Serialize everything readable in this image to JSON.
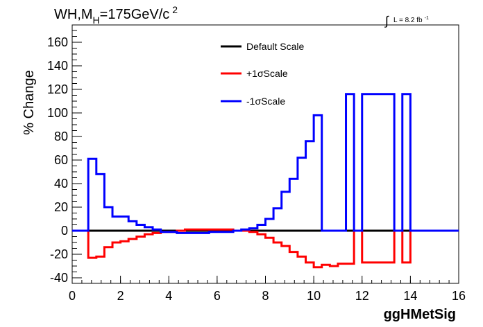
{
  "chart_data": {
    "type": "line",
    "title": "WH,M",
    "title_sub": "H",
    "title_mid": "=175GeV/c",
    "title_sup": "2",
    "lumi_prefix": "L = 8.2 fb",
    "lumi_sup": "-1",
    "xlabel": "ggHMetSig",
    "ylabel": "% Change",
    "xlim": [
      0,
      16
    ],
    "ylim": [
      -45,
      175
    ],
    "xticks": [
      "0",
      "2",
      "4",
      "6",
      "8",
      "10",
      "12",
      "14",
      "16"
    ],
    "yticks": [
      "-40",
      "-20",
      "0",
      "20",
      "40",
      "60",
      "80",
      "100",
      "120",
      "140",
      "160"
    ],
    "legend_position": "top-center",
    "bin_edges": [
      0,
      0.667,
      1.0,
      1.333,
      1.667,
      2.0,
      2.333,
      2.667,
      3.0,
      3.333,
      3.667,
      4.0,
      4.333,
      4.667,
      5.0,
      5.333,
      5.667,
      6.0,
      6.333,
      6.667,
      7.0,
      7.333,
      7.667,
      8.0,
      8.333,
      8.667,
      9.0,
      9.333,
      9.667,
      10.0,
      10.333,
      10.667,
      11.0,
      11.333,
      11.667,
      12.0,
      12.333,
      12.667,
      13.0,
      13.333,
      13.667,
      14.0,
      14.333,
      14.667,
      15.0,
      15.333,
      15.667,
      16.0
    ],
    "series": [
      {
        "name": "Default Scale",
        "color": "#000000",
        "values": [
          0,
          0,
          0,
          0,
          0,
          0,
          0,
          0,
          0,
          0,
          0,
          0,
          0,
          0,
          0,
          0,
          0,
          0,
          0,
          0,
          0,
          0,
          0,
          0,
          0,
          0,
          0,
          0,
          0,
          0,
          0,
          0,
          0,
          0,
          0,
          0,
          0,
          0,
          0,
          0,
          0,
          0,
          0,
          0,
          0,
          0,
          0
        ]
      },
      {
        "name": "+1σScale",
        "color": "#ff0000",
        "values": [
          0,
          -23,
          -22,
          -14,
          -10,
          -9,
          -7,
          -5,
          -3,
          -2,
          -1,
          -1,
          0,
          1,
          1,
          1,
          1,
          1,
          1,
          0,
          0,
          -1,
          -3,
          -6,
          -10,
          -13,
          -18,
          -22,
          -27,
          -31,
          -29,
          -30,
          -28,
          -28,
          0,
          -27,
          -27,
          -27,
          -27,
          0,
          -27,
          0,
          0,
          0,
          0,
          0,
          0
        ]
      },
      {
        "name": "-1σScale",
        "color": "#0000ff",
        "values": [
          0,
          61,
          48,
          20,
          12,
          12,
          8,
          5,
          3,
          1,
          -1,
          -1,
          -2,
          -2,
          -2,
          -2,
          -1,
          -1,
          -1,
          0,
          1,
          2,
          5,
          10,
          19,
          33,
          44,
          62,
          76,
          98,
          0,
          0,
          0,
          116,
          0,
          116,
          116,
          116,
          116,
          0,
          116,
          0,
          0,
          0,
          0,
          0,
          0
        ]
      }
    ]
  }
}
